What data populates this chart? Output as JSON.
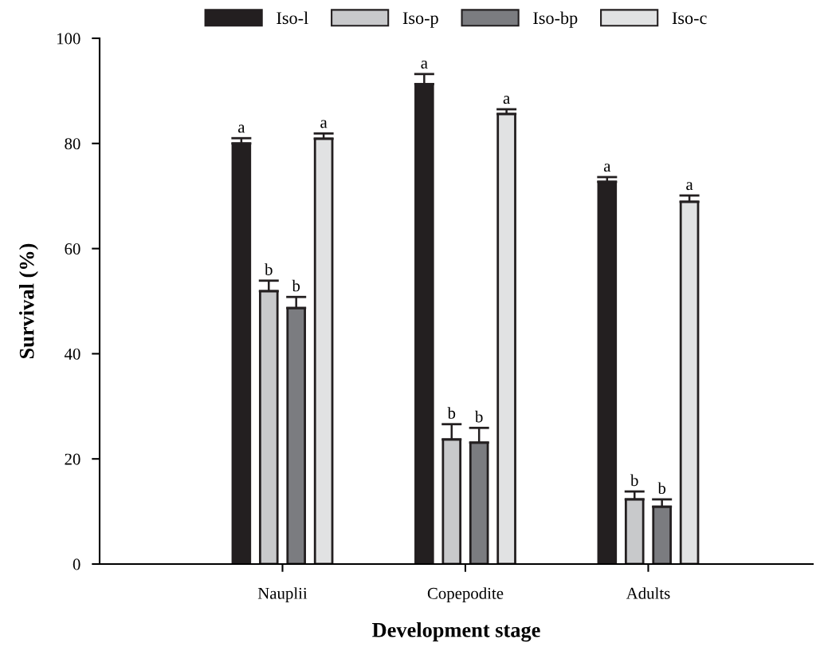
{
  "chart_data": {
    "type": "bar",
    "xlabel": "Development stage",
    "ylabel": "Survival (%)",
    "categories": [
      "Nauplii",
      "Copepodite",
      "Adults"
    ],
    "series": [
      {
        "name": "Iso-l",
        "color": "#231f20",
        "values": [
          80.0,
          91.3,
          72.7
        ],
        "errors": [
          [
            80.0,
            81.0
          ],
          [
            91.3,
            93.2
          ],
          [
            72.7,
            73.6
          ]
        ],
        "value_labels": [
          "a",
          "a",
          "a"
        ]
      },
      {
        "name": "Iso-p",
        "color": "#c8c9cb",
        "values": [
          51.9,
          23.7,
          12.3
        ],
        "errors": [
          [
            51.9,
            53.9
          ],
          [
            23.7,
            26.6
          ],
          [
            12.3,
            13.8
          ]
        ],
        "value_labels": [
          "b",
          "b",
          "b"
        ]
      },
      {
        "name": "Iso-bp",
        "color": "#7b7c80",
        "values": [
          48.7,
          23.1,
          10.9
        ],
        "errors": [
          [
            48.7,
            50.8
          ],
          [
            23.1,
            25.9
          ],
          [
            10.9,
            12.3
          ]
        ],
        "value_labels": [
          "b",
          "b",
          "b"
        ]
      },
      {
        "name": "Iso-c",
        "color": "#e1e2e3",
        "values": [
          80.9,
          85.6,
          68.9
        ],
        "errors": [
          [
            80.9,
            81.9
          ],
          [
            85.6,
            86.5
          ],
          [
            68.9,
            70.1
          ]
        ],
        "value_labels": [
          "a",
          "a",
          "a"
        ]
      }
    ],
    "ylim": [
      0,
      100
    ],
    "yticks": [
      0,
      20,
      40,
      60,
      80,
      100
    ],
    "grid": false,
    "legend": "top"
  }
}
